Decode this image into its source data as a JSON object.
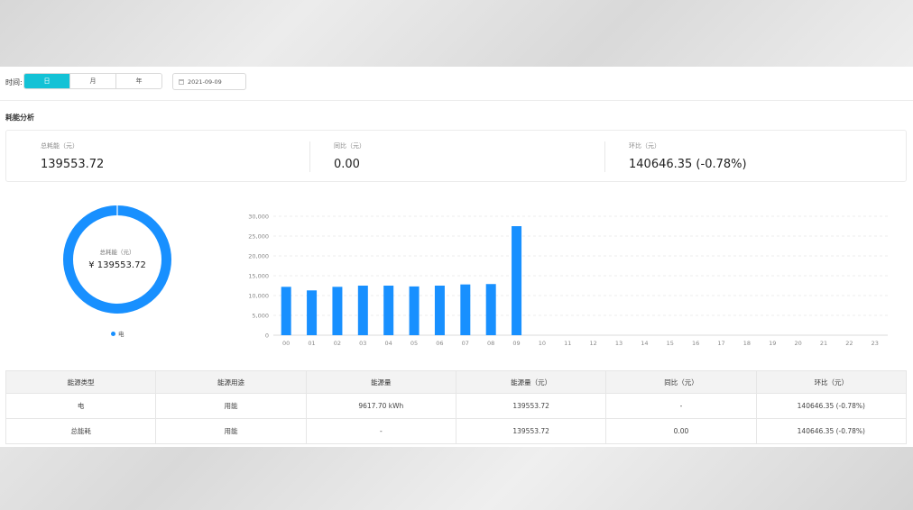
{
  "toolbar": {
    "time_label": "时间:",
    "period_tabs": [
      "日",
      "月",
      "年"
    ],
    "active_tab": "日",
    "date_value": "2021-09-09"
  },
  "section_title": "耗能分析",
  "stats": [
    {
      "label": "总耗能（元）",
      "value": "139553.72"
    },
    {
      "label": "同比（元）",
      "value": "0.00"
    },
    {
      "label": "环比（元）",
      "value": "140646.35 (-0.78%)"
    }
  ],
  "donut": {
    "center_label": "总耗能（元）",
    "center_value": "¥ 139553.72",
    "legend": "电",
    "color": "#1890ff"
  },
  "chart_data": {
    "type": "bar",
    "categories": [
      "00",
      "01",
      "02",
      "03",
      "04",
      "05",
      "06",
      "07",
      "08",
      "09",
      "10",
      "11",
      "12",
      "13",
      "14",
      "15",
      "16",
      "17",
      "18",
      "19",
      "20",
      "21",
      "22",
      "23"
    ],
    "values": [
      12200,
      11300,
      12200,
      12500,
      12500,
      12300,
      12500,
      12800,
      12900,
      27500,
      null,
      null,
      null,
      null,
      null,
      null,
      null,
      null,
      null,
      null,
      null,
      null,
      null,
      null
    ],
    "y_ticks": [
      "0",
      "5,000",
      "10,000",
      "15,000",
      "20,000",
      "25,000",
      "30,000"
    ],
    "ylim": [
      0,
      30000
    ],
    "grid": true,
    "bar_color": "#1890ff"
  },
  "table": {
    "headers": [
      "能源类型",
      "能源用途",
      "能源量",
      "能源量（元）",
      "同比（元）",
      "环比（元）"
    ],
    "rows": [
      [
        "电",
        "用能",
        "9617.70 kWh",
        "139553.72",
        "-",
        "140646.35 (-0.78%)"
      ],
      [
        "总能耗",
        "用能",
        "-",
        "139553.72",
        "0.00",
        "140646.35 (-0.78%)"
      ]
    ]
  }
}
